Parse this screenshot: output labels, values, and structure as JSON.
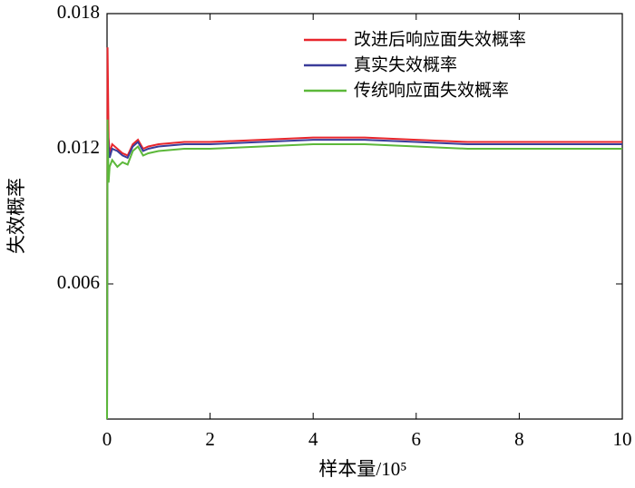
{
  "chart_data": {
    "type": "line",
    "x_label": "样本量/10⁵",
    "y_label": "失效概率",
    "x": [
      0,
      0.01,
      0.03,
      0.05,
      0.1,
      0.2,
      0.3,
      0.4,
      0.5,
      0.6,
      0.7,
      0.8,
      1,
      1.5,
      2,
      3,
      4,
      5,
      6,
      7,
      8,
      9,
      10
    ],
    "series": [
      {
        "name": "改进后响应面失效概率",
        "color": "#e8262c",
        "values": [
          0,
          0.0165,
          0.0125,
          0.0118,
          0.0122,
          0.012,
          0.0118,
          0.0117,
          0.0122,
          0.0124,
          0.012,
          0.0121,
          0.0122,
          0.0123,
          0.0123,
          0.0124,
          0.0125,
          0.0125,
          0.0124,
          0.0123,
          0.0123,
          0.0123,
          0.0123
        ]
      },
      {
        "name": "真实失效概率",
        "color": "#3a3c9a",
        "values": [
          0,
          0.0128,
          0.0121,
          0.0116,
          0.012,
          0.0119,
          0.0117,
          0.0116,
          0.0121,
          0.0123,
          0.0119,
          0.012,
          0.0121,
          0.0122,
          0.0122,
          0.0123,
          0.0124,
          0.0124,
          0.0123,
          0.0122,
          0.0122,
          0.0122,
          0.0122
        ]
      },
      {
        "name": "传统响应面失效概率",
        "color": "#5cb83a",
        "values": [
          0,
          0.0133,
          0.0105,
          0.0112,
          0.0115,
          0.0112,
          0.0114,
          0.0113,
          0.0119,
          0.0121,
          0.0117,
          0.0118,
          0.0119,
          0.012,
          0.012,
          0.0121,
          0.0122,
          0.0122,
          0.0121,
          0.012,
          0.012,
          0.012,
          0.012
        ]
      }
    ],
    "xlim": [
      0,
      10
    ],
    "xticks": [
      0,
      2,
      4,
      6,
      8,
      10
    ],
    "ylim": [
      0,
      0.018
    ],
    "yticks": [
      0.006,
      0.012,
      0.018
    ],
    "legend": "upper-right",
    "grid": false
  }
}
